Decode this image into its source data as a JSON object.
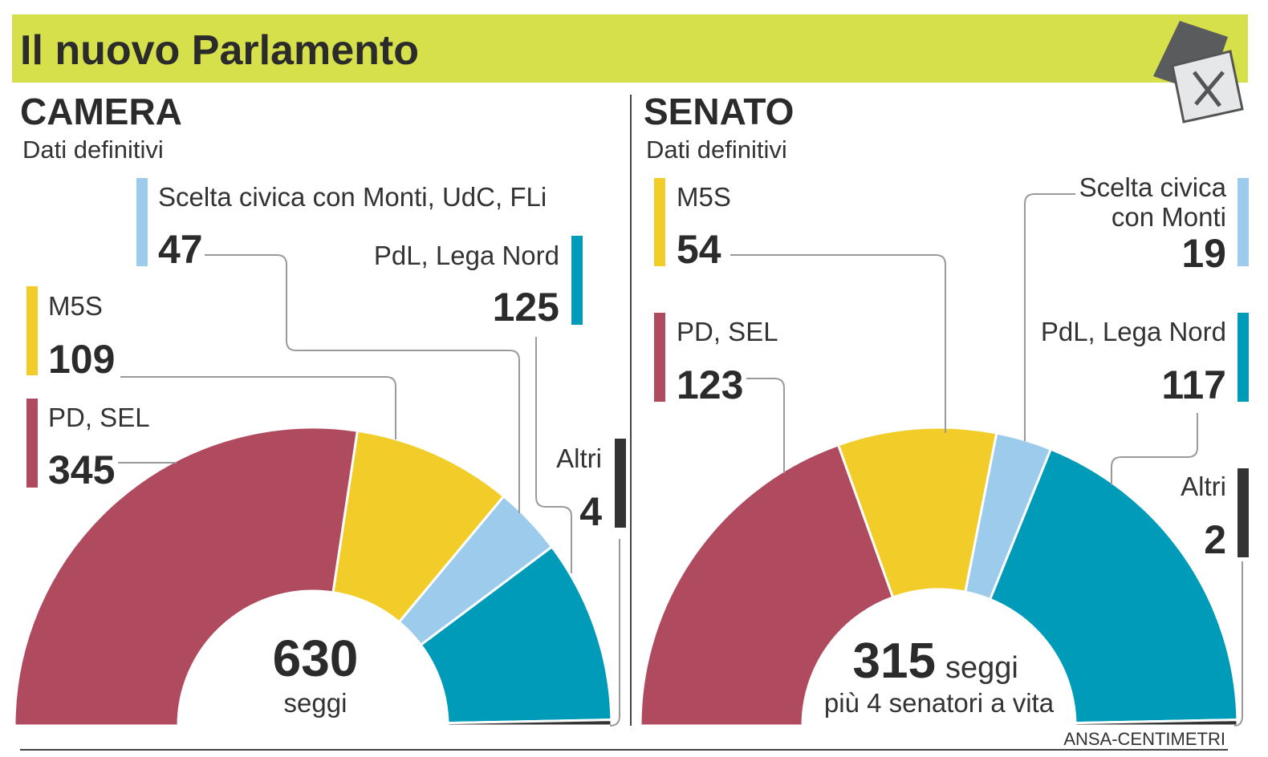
{
  "title": "Il nuovo Parlamento",
  "colors": {
    "header_bg": "#d6e04a",
    "PD, SEL": "#b04a5e",
    "M5S": "#f2cd2a",
    "Scelta": "#9ccbeb",
    "PdL, Lega Nord": "#009bb8",
    "Altri": "#333333"
  },
  "icon": "ballot-box-icon",
  "source": "ANSA-CENTIMETRI",
  "chart_data": [
    {
      "type": "pie",
      "shape": "half-donut",
      "title": "CAMERA",
      "subtitle": "Dati definitivi",
      "total": "630",
      "total_label": "seggi",
      "categories": [
        "PD, SEL",
        "M5S",
        "Scelta civica con Monti, UdC, FLi",
        "PdL, Lega Nord",
        "Altri"
      ],
      "values": [
        345,
        109,
        47,
        125,
        4
      ],
      "value_labels": [
        "345",
        "109",
        "47",
        "125",
        "4"
      ]
    },
    {
      "type": "pie",
      "shape": "half-donut",
      "title": "SENATO",
      "subtitle": "Dati definitivi",
      "total": "315",
      "total_label": "seggi",
      "note": "più 4 senatori a vita",
      "categories": [
        "PD, SEL",
        "M5S",
        "Scelta civica con Monti",
        "PdL, Lega Nord",
        "Altri"
      ],
      "category_lines": [
        "Scelta civica",
        "con Monti"
      ],
      "values": [
        123,
        54,
        19,
        117,
        2
      ],
      "value_labels": [
        "123",
        "54",
        "19",
        "117",
        "2"
      ]
    }
  ]
}
